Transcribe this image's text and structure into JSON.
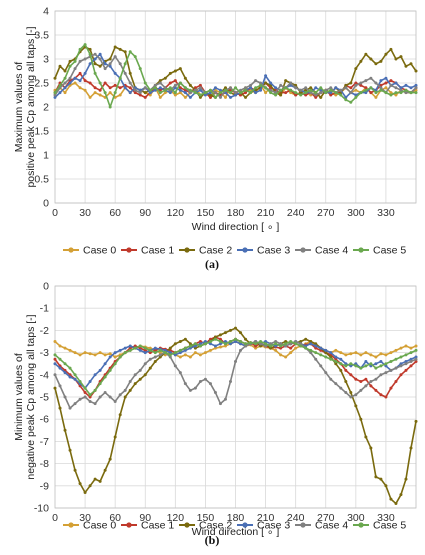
{
  "chart_data": [
    {
      "type": "line",
      "panel_label": "(a)",
      "ylabel_lines": [
        "Maximum values of",
        "positive peak Cp among all taps [-]"
      ],
      "xlabel": "Wind direction [ ∘ ]",
      "xlim": [
        0,
        360
      ],
      "ylim": [
        0,
        4
      ],
      "x_ticks": [
        0,
        30,
        60,
        90,
        120,
        150,
        180,
        210,
        240,
        270,
        300,
        330
      ],
      "y_ticks": [
        0,
        0.5,
        1,
        1.5,
        2,
        2.5,
        3,
        3.5,
        4
      ],
      "y_tick_labels": [
        "0",
        "0.5",
        "1",
        "1.5",
        "2",
        "2.5",
        "3",
        "3.5",
        "4"
      ],
      "y_reversed": false,
      "grid": true,
      "legend_position": "bottom",
      "series": [
        {
          "name": "Case 0",
          "color": "#d4a035",
          "values": [
            2.35,
            2.4,
            2.3,
            2.45,
            2.5,
            2.4,
            2.35,
            2.2,
            2.3,
            2.25,
            2.2,
            2.3,
            2.2,
            2.25,
            2.4,
            2.3,
            2.4,
            2.35,
            2.3,
            2.25,
            2.4,
            2.2,
            2.3,
            2.35,
            2.25,
            2.3,
            2.2,
            2.3,
            2.4,
            2.25,
            2.3,
            2.2,
            2.35,
            2.3,
            2.2,
            2.4,
            2.3,
            2.25,
            2.4,
            2.35,
            2.3,
            2.45,
            2.3,
            2.4,
            2.35,
            2.25,
            2.4,
            2.3,
            2.25,
            2.3,
            2.35,
            2.25,
            2.3,
            2.2,
            2.35,
            2.3,
            2.25,
            2.3,
            2.4,
            2.3,
            2.35,
            2.3,
            2.4,
            2.3,
            2.2,
            2.35,
            2.4,
            2.3,
            2.25,
            2.35,
            2.3,
            2.3,
            2.35
          ]
        },
        {
          "name": "Case 1",
          "color": "#c0392b",
          "values": [
            2.3,
            2.5,
            2.4,
            2.55,
            2.6,
            2.7,
            2.55,
            2.5,
            2.4,
            2.35,
            2.5,
            2.4,
            2.45,
            2.4,
            2.45,
            2.4,
            2.3,
            2.25,
            2.2,
            2.3,
            2.4,
            2.35,
            2.4,
            2.5,
            2.55,
            2.4,
            2.35,
            2.3,
            2.4,
            2.45,
            2.3,
            2.2,
            2.3,
            2.25,
            2.3,
            2.35,
            2.3,
            2.25,
            2.3,
            2.4,
            2.35,
            2.4,
            2.5,
            2.4,
            2.35,
            2.3,
            2.3,
            2.35,
            2.25,
            2.3,
            2.25,
            2.3,
            2.2,
            2.3,
            2.35,
            2.25,
            2.3,
            2.3,
            2.45,
            2.4,
            2.5,
            2.45,
            2.4,
            2.3,
            2.35,
            2.45,
            2.5,
            2.55,
            2.5,
            2.4,
            2.35,
            2.3,
            2.4
          ]
        },
        {
          "name": "Case 2",
          "color": "#7a6a0e",
          "values": [
            2.6,
            2.85,
            2.75,
            2.95,
            3.0,
            3.15,
            3.25,
            3.2,
            2.9,
            2.85,
            2.95,
            3.0,
            3.25,
            3.2,
            3.15,
            2.7,
            2.4,
            2.35,
            2.3,
            2.35,
            2.45,
            2.55,
            2.6,
            2.7,
            2.75,
            2.8,
            2.6,
            2.45,
            2.35,
            2.2,
            2.3,
            2.25,
            2.2,
            2.3,
            2.4,
            2.3,
            2.25,
            2.3,
            2.2,
            2.3,
            2.35,
            2.4,
            2.5,
            2.45,
            2.3,
            2.25,
            2.55,
            2.5,
            2.45,
            2.3,
            2.35,
            2.4,
            2.3,
            2.2,
            2.35,
            2.3,
            2.4,
            2.3,
            2.45,
            2.5,
            2.8,
            2.95,
            3.1,
            3.0,
            2.9,
            2.95,
            3.1,
            3.2,
            3.0,
            3.05,
            2.85,
            2.9,
            2.75
          ]
        },
        {
          "name": "Case 3",
          "color": "#4a6fb5",
          "values": [
            2.2,
            2.3,
            2.4,
            2.5,
            2.6,
            2.55,
            2.7,
            2.9,
            3.0,
            3.1,
            2.9,
            2.85,
            2.7,
            2.6,
            2.4,
            2.3,
            2.4,
            2.35,
            2.4,
            2.3,
            2.35,
            2.4,
            2.35,
            2.3,
            2.4,
            2.35,
            2.3,
            2.2,
            2.3,
            2.35,
            2.25,
            2.3,
            2.4,
            2.35,
            2.3,
            2.2,
            2.25,
            2.3,
            2.35,
            2.4,
            2.3,
            2.35,
            2.65,
            2.5,
            2.4,
            2.35,
            2.4,
            2.45,
            2.4,
            2.35,
            2.3,
            2.3,
            2.4,
            2.35,
            2.3,
            2.3,
            2.4,
            2.35,
            2.2,
            2.3,
            2.25,
            2.3,
            2.3,
            2.4,
            2.35,
            2.55,
            2.6,
            2.45,
            2.5,
            2.4,
            2.45,
            2.4,
            2.45
          ]
        },
        {
          "name": "Case 4",
          "color": "#808080",
          "values": [
            2.25,
            2.4,
            2.5,
            2.6,
            2.8,
            2.95,
            3.0,
            3.05,
            3.1,
            3.0,
            2.8,
            2.9,
            3.05,
            2.9,
            2.7,
            2.5,
            2.35,
            2.3,
            2.4,
            2.35,
            2.45,
            2.5,
            2.4,
            2.35,
            2.45,
            2.5,
            2.4,
            2.3,
            2.35,
            2.4,
            2.3,
            2.35,
            2.3,
            2.2,
            2.35,
            2.4,
            2.3,
            2.35,
            2.4,
            2.45,
            2.55,
            2.5,
            2.4,
            2.35,
            2.3,
            2.45,
            2.4,
            2.5,
            2.4,
            2.35,
            2.4,
            2.3,
            2.25,
            2.3,
            2.35,
            2.4,
            2.3,
            2.35,
            2.4,
            2.3,
            2.45,
            2.5,
            2.55,
            2.6,
            2.5,
            2.4,
            2.3,
            2.45,
            2.4,
            2.35,
            2.3,
            2.3,
            2.4
          ]
        },
        {
          "name": "Case 5",
          "color": "#6aa84f",
          "values": [
            2.3,
            2.45,
            2.6,
            2.85,
            2.95,
            3.2,
            3.3,
            3.1,
            2.7,
            2.5,
            2.3,
            2.0,
            2.3,
            2.6,
            2.9,
            3.15,
            3.05,
            2.8,
            2.5,
            2.35,
            2.4,
            2.3,
            2.35,
            2.4,
            2.3,
            2.5,
            2.4,
            2.35,
            2.3,
            2.25,
            2.3,
            2.35,
            2.2,
            2.3,
            2.35,
            2.3,
            2.4,
            2.3,
            2.35,
            2.3,
            2.4,
            2.45,
            2.4,
            2.3,
            2.25,
            2.35,
            2.4,
            2.35,
            2.3,
            2.25,
            2.3,
            2.35,
            2.3,
            2.4,
            2.3,
            2.35,
            2.3,
            2.25,
            2.15,
            2.1,
            2.2,
            2.3,
            2.35,
            2.4,
            2.3,
            2.35,
            2.3,
            2.25,
            2.3,
            2.3,
            2.35,
            2.3,
            2.3
          ]
        }
      ]
    },
    {
      "type": "line",
      "panel_label": "(b)",
      "ylabel_lines": [
        "Minimum values of",
        "negative peak Cp among all taps [-]"
      ],
      "xlabel": "Wind direction [ ∘ ]",
      "xlim": [
        0,
        360
      ],
      "ylim": [
        -10,
        0
      ],
      "x_ticks": [
        0,
        30,
        60,
        90,
        120,
        150,
        180,
        210,
        240,
        270,
        300,
        330
      ],
      "y_ticks": [
        0,
        -1,
        -2,
        -3,
        -4,
        -5,
        -6,
        -7,
        -8,
        -9,
        -10
      ],
      "y_tick_labels": [
        "0",
        "-1",
        "-2",
        "-3",
        "-4",
        "-5",
        "-6",
        "-7",
        "-8",
        "-9",
        "-10"
      ],
      "y_reversed": true,
      "grid": true,
      "legend_position": "bottom",
      "series": [
        {
          "name": "Case 0",
          "color": "#d4a035",
          "values": [
            -2.5,
            -2.7,
            -2.8,
            -2.9,
            -3.0,
            -3.1,
            -3.0,
            -3.05,
            -3.1,
            -3.0,
            -3.1,
            -3.05,
            -3.2,
            -3.1,
            -3.0,
            -2.9,
            -2.8,
            -2.7,
            -2.75,
            -2.8,
            -2.9,
            -3.0,
            -3.1,
            -3.0,
            -3.1,
            -3.2,
            -3.1,
            -3.2,
            -3.0,
            -3.1,
            -3.0,
            -2.9,
            -2.8,
            -2.75,
            -2.7,
            -2.6,
            -2.5,
            -2.6,
            -2.7,
            -2.65,
            -2.8,
            -2.7,
            -2.75,
            -2.8,
            -2.9,
            -3.1,
            -3.2,
            -3.0,
            -2.8,
            -2.7,
            -2.6,
            -2.5,
            -2.7,
            -2.8,
            -2.9,
            -3.0,
            -2.9,
            -3.0,
            -3.1,
            -3.05,
            -3.0,
            -3.1,
            -3.0,
            -3.1,
            -3.2,
            -3.05,
            -3.1,
            -3.0,
            -2.9,
            -2.8,
            -2.7,
            -2.8,
            -2.7
          ]
        },
        {
          "name": "Case 1",
          "color": "#c0392b",
          "values": [
            -3.3,
            -3.6,
            -3.8,
            -4.0,
            -4.2,
            -4.5,
            -4.8,
            -5.0,
            -4.7,
            -4.3,
            -4.0,
            -3.7,
            -3.4,
            -3.2,
            -3.0,
            -2.8,
            -2.7,
            -2.8,
            -2.9,
            -3.0,
            -2.9,
            -2.8,
            -2.85,
            -2.9,
            -3.0,
            -2.9,
            -2.8,
            -2.7,
            -2.6,
            -2.5,
            -2.6,
            -2.4,
            -2.3,
            -2.4,
            -2.6,
            -2.5,
            -2.4,
            -2.5,
            -2.6,
            -2.55,
            -2.7,
            -2.6,
            -2.7,
            -2.8,
            -2.75,
            -2.8,
            -2.7,
            -2.8,
            -2.6,
            -2.7,
            -2.65,
            -2.6,
            -2.8,
            -2.9,
            -3.0,
            -3.1,
            -3.3,
            -3.5,
            -3.8,
            -4.0,
            -4.2,
            -4.3,
            -4.2,
            -4.5,
            -4.7,
            -4.9,
            -5.0,
            -4.6,
            -4.3,
            -4.0,
            -3.8,
            -3.6,
            -3.4
          ]
        },
        {
          "name": "Case 2",
          "color": "#7a6a0e",
          "values": [
            -4.6,
            -5.5,
            -6.5,
            -7.4,
            -8.3,
            -8.9,
            -9.3,
            -9.0,
            -8.7,
            -8.8,
            -8.3,
            -7.8,
            -6.8,
            -5.8,
            -5.0,
            -4.7,
            -4.4,
            -4.2,
            -4.0,
            -3.7,
            -3.4,
            -3.2,
            -3.0,
            -2.8,
            -2.6,
            -2.5,
            -2.4,
            -2.6,
            -2.8,
            -2.7,
            -2.6,
            -2.5,
            -2.3,
            -2.2,
            -2.1,
            -2.0,
            -1.9,
            -2.1,
            -2.4,
            -2.6,
            -2.5,
            -2.7,
            -2.6,
            -2.8,
            -2.7,
            -2.6,
            -2.5,
            -2.6,
            -2.55,
            -2.5,
            -2.4,
            -2.5,
            -2.6,
            -2.8,
            -3.0,
            -3.2,
            -3.5,
            -3.8,
            -4.3,
            -4.8,
            -5.4,
            -6.0,
            -6.8,
            -7.3,
            -8.6,
            -8.7,
            -9.0,
            -9.6,
            -9.8,
            -9.4,
            -8.7,
            -7.3,
            -6.1
          ]
        },
        {
          "name": "Case 3",
          "color": "#4a6fb5",
          "values": [
            -3.5,
            -3.7,
            -3.9,
            -4.1,
            -4.2,
            -4.4,
            -4.6,
            -4.3,
            -4.0,
            -3.8,
            -3.5,
            -3.2,
            -3.0,
            -2.9,
            -2.8,
            -2.7,
            -2.8,
            -2.9,
            -3.0,
            -2.9,
            -2.8,
            -2.85,
            -2.9,
            -3.0,
            -3.1,
            -3.0,
            -2.9,
            -2.8,
            -2.7,
            -2.6,
            -2.5,
            -2.6,
            -2.7,
            -2.6,
            -2.5,
            -2.6,
            -2.5,
            -2.6,
            -2.7,
            -2.6,
            -2.5,
            -2.6,
            -2.5,
            -2.6,
            -2.7,
            -2.6,
            -2.7,
            -2.6,
            -2.5,
            -2.6,
            -2.7,
            -2.6,
            -2.7,
            -2.8,
            -2.9,
            -3.0,
            -3.2,
            -3.3,
            -3.5,
            -3.6,
            -3.5,
            -3.7,
            -3.4,
            -3.6,
            -3.5,
            -3.4,
            -3.6,
            -3.8,
            -3.7,
            -3.5,
            -3.4,
            -3.3,
            -3.2
          ]
        },
        {
          "name": "Case 4",
          "color": "#808080",
          "values": [
            -4.0,
            -4.5,
            -5.0,
            -5.5,
            -5.3,
            -5.1,
            -5.0,
            -5.2,
            -5.3,
            -5.0,
            -4.8,
            -5.0,
            -5.2,
            -4.9,
            -4.7,
            -4.3,
            -4.0,
            -3.8,
            -3.5,
            -3.3,
            -3.2,
            -3.1,
            -3.0,
            -3.2,
            -3.6,
            -3.9,
            -4.4,
            -4.7,
            -4.6,
            -4.3,
            -4.2,
            -4.4,
            -4.8,
            -5.3,
            -5.1,
            -4.3,
            -3.4,
            -2.9,
            -2.7,
            -2.6,
            -2.5,
            -2.6,
            -2.7,
            -2.6,
            -2.5,
            -2.6,
            -2.7,
            -2.6,
            -2.5,
            -2.6,
            -2.8,
            -3.0,
            -3.3,
            -3.6,
            -3.9,
            -4.2,
            -4.4,
            -4.6,
            -4.8,
            -5.0,
            -4.9,
            -4.7,
            -4.5,
            -4.3,
            -4.2,
            -4.0,
            -3.9,
            -3.8,
            -3.7,
            -3.6,
            -3.5,
            -3.4,
            -3.3
          ]
        },
        {
          "name": "Case 5",
          "color": "#6aa84f",
          "values": [
            -3.1,
            -3.3,
            -3.5,
            -3.7,
            -4.0,
            -4.3,
            -4.6,
            -4.9,
            -4.7,
            -4.4,
            -4.1,
            -3.8,
            -3.5,
            -3.2,
            -3.0,
            -2.9,
            -2.8,
            -2.7,
            -2.8,
            -2.9,
            -3.0,
            -2.9,
            -3.0,
            -3.1,
            -3.0,
            -2.9,
            -2.8,
            -2.7,
            -2.6,
            -2.7,
            -2.6,
            -2.5,
            -2.4,
            -2.5,
            -2.6,
            -2.5,
            -2.4,
            -2.5,
            -2.6,
            -2.55,
            -2.6,
            -2.5,
            -2.6,
            -2.7,
            -2.6,
            -2.7,
            -2.6,
            -2.5,
            -2.6,
            -2.7,
            -2.8,
            -2.9,
            -3.0,
            -3.1,
            -3.2,
            -3.3,
            -3.4,
            -3.5,
            -3.6,
            -3.5,
            -3.6,
            -3.7,
            -3.6,
            -3.5,
            -3.7,
            -3.6,
            -3.5,
            -3.4,
            -3.3,
            -3.2,
            -3.1,
            -3.0,
            -2.9
          ]
        }
      ]
    }
  ]
}
